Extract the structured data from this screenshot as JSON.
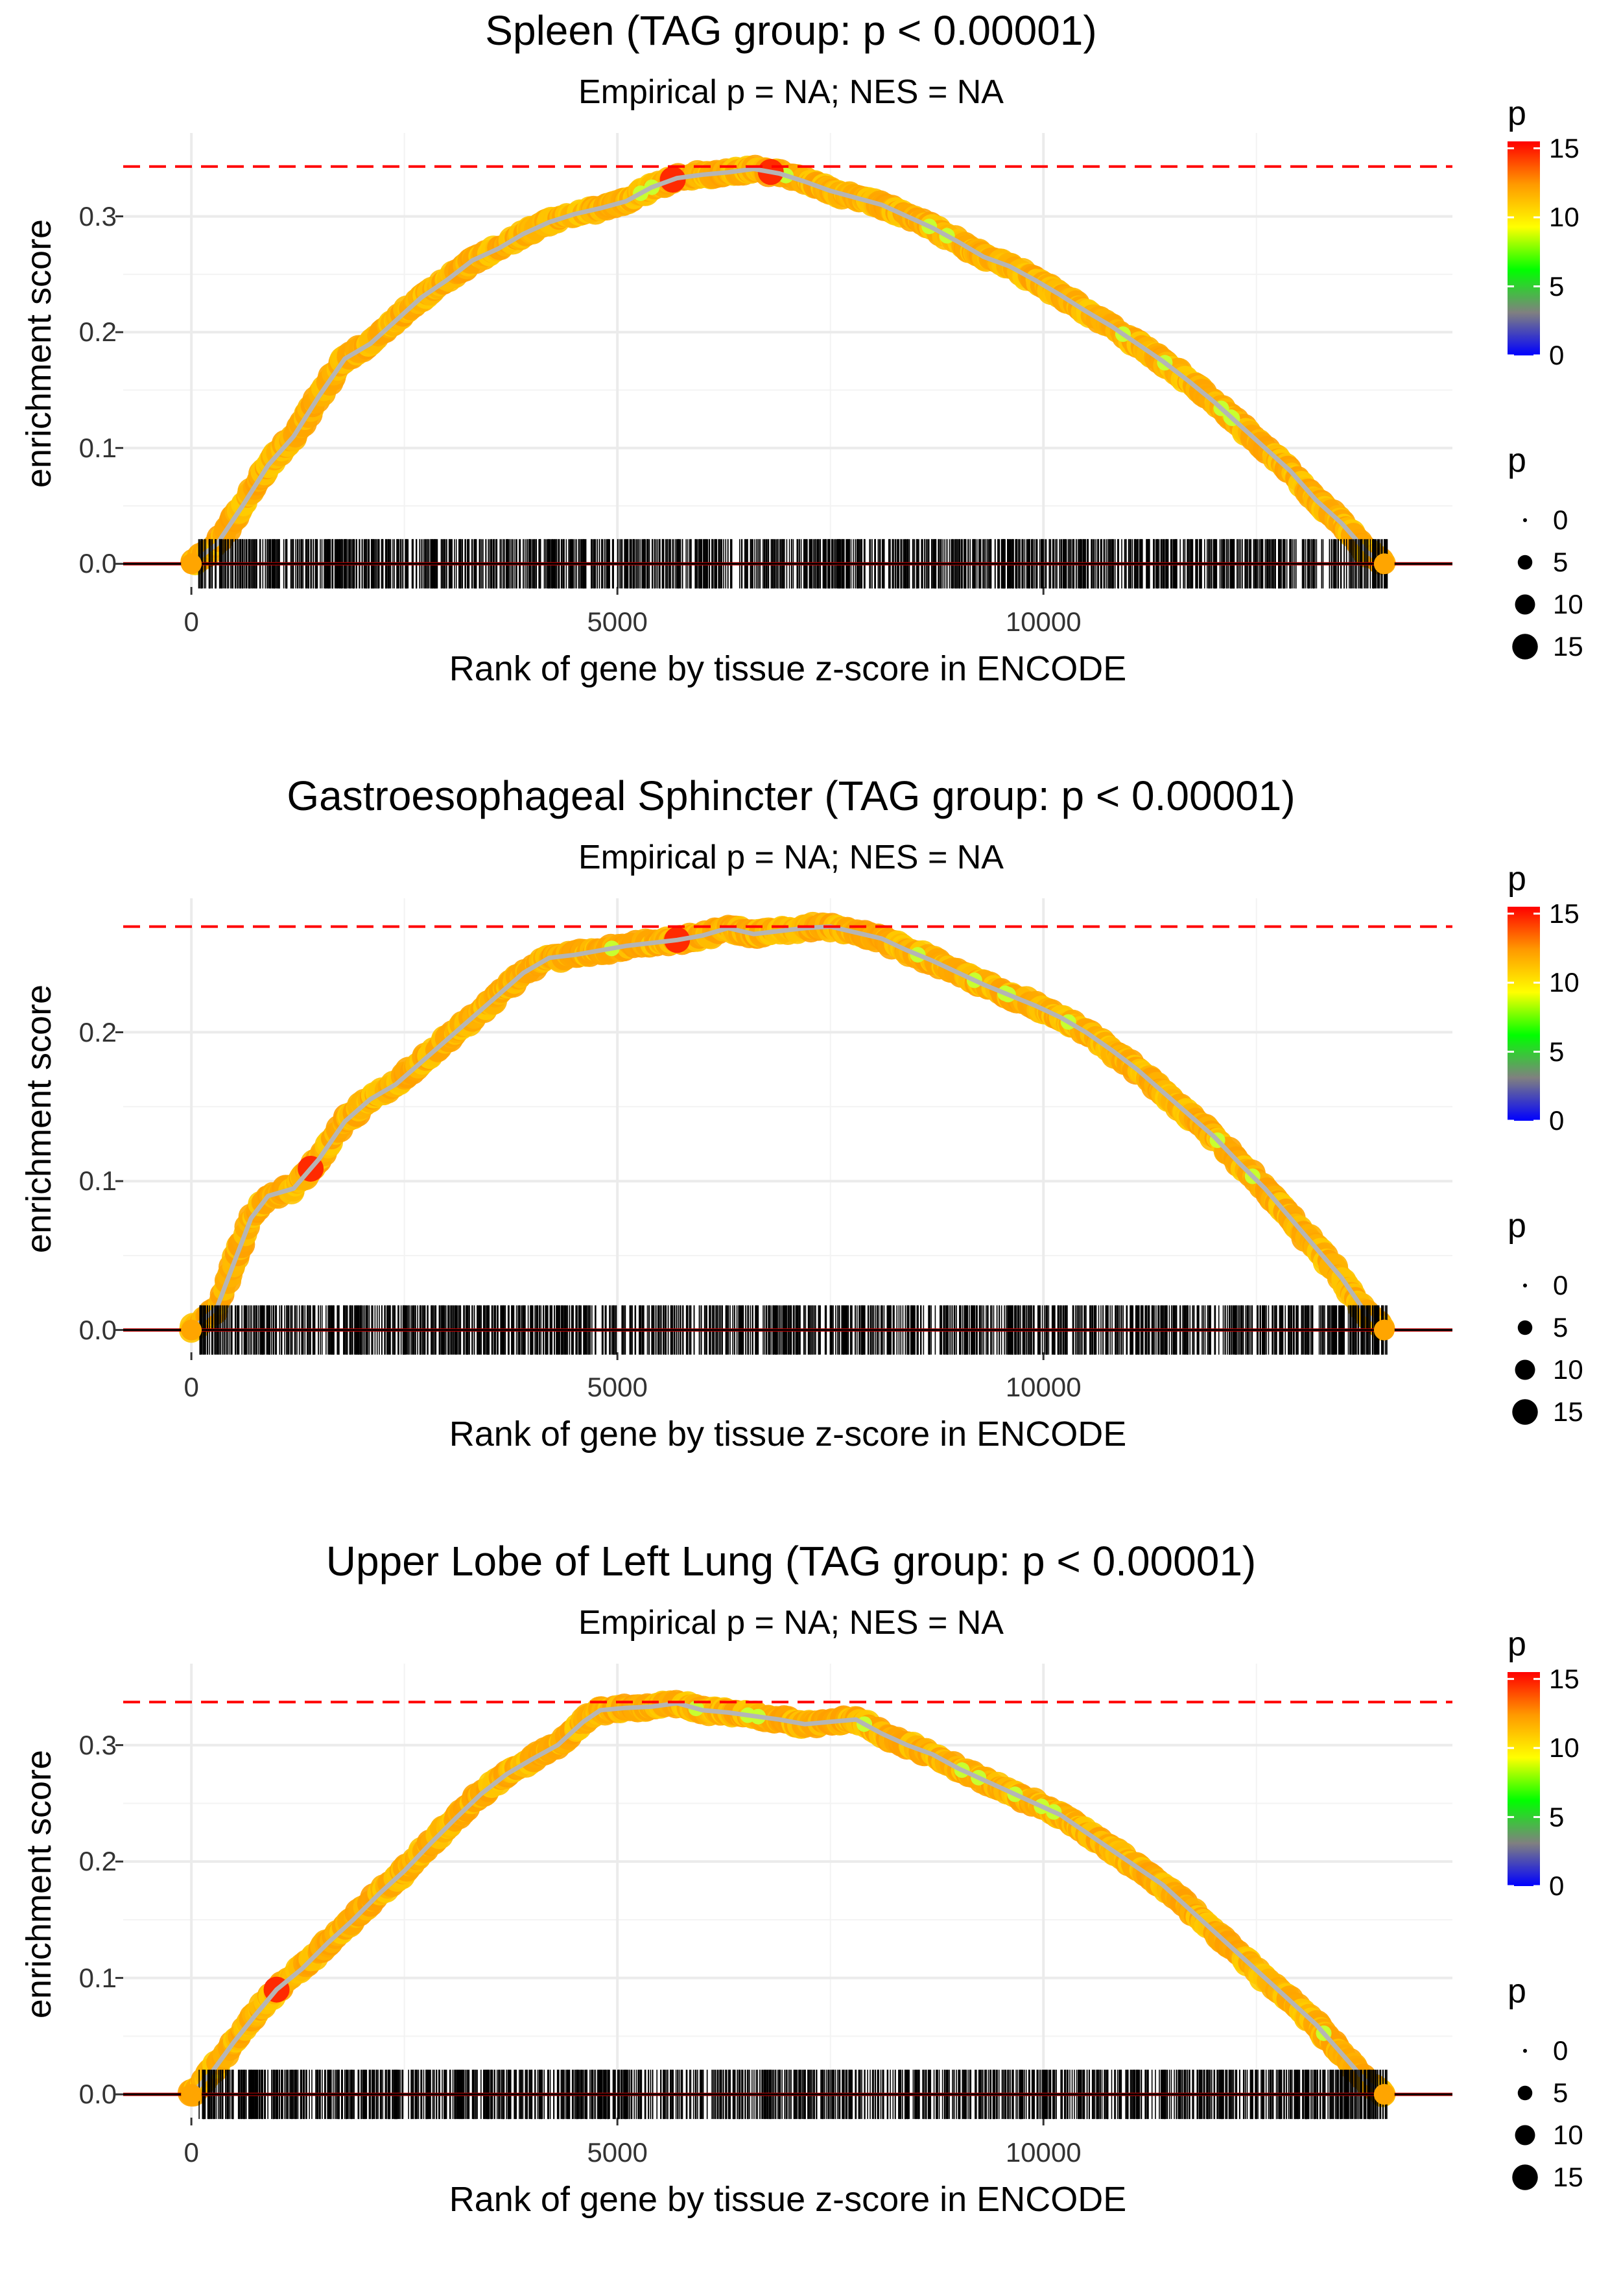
{
  "chart_data": [
    {
      "type": "line",
      "title": "Spleen (TAG group: p < 0.00001)",
      "subtitle": "Empirical p = NA; NES = NA",
      "xlabel": "Rank of gene by tissue z-score in ENCODE",
      "ylabel": "enrichment score",
      "xlim": [
        -800,
        14800
      ],
      "ylim": [
        -0.02,
        0.372
      ],
      "x_ticks": [
        0,
        5000,
        10000
      ],
      "x_tick_labels": [
        "0",
        "5000",
        "10000"
      ],
      "y_ticks": [
        0.0,
        0.1,
        0.2,
        0.3
      ],
      "y_tick_labels": [
        "0.0",
        "0.1",
        "0.2",
        "0.3"
      ],
      "max_es": 0.343,
      "max_es_line": "dashed red horizontal",
      "curve": {
        "x": [
          0,
          300,
          600,
          900,
          1200,
          1500,
          1800,
          2100,
          2400,
          2700,
          3000,
          3300,
          3600,
          3900,
          4200,
          4500,
          4800,
          5100,
          5400,
          5700,
          6000,
          6300,
          6600,
          6900,
          7200,
          7500,
          7800,
          8100,
          8400,
          8700,
          9000,
          9300,
          9600,
          9900,
          10200,
          10500,
          10800,
          11100,
          11400,
          11700,
          12000,
          12300,
          12600,
          12900,
          13200,
          13500,
          13800,
          14000
        ],
        "y": [
          0.0,
          0.017,
          0.05,
          0.085,
          0.11,
          0.145,
          0.177,
          0.19,
          0.21,
          0.23,
          0.245,
          0.262,
          0.272,
          0.285,
          0.295,
          0.302,
          0.307,
          0.313,
          0.325,
          0.333,
          0.336,
          0.338,
          0.341,
          0.337,
          0.33,
          0.322,
          0.316,
          0.31,
          0.3,
          0.29,
          0.278,
          0.265,
          0.257,
          0.245,
          0.232,
          0.218,
          0.205,
          0.19,
          0.175,
          0.158,
          0.14,
          0.12,
          0.1,
          0.08,
          0.055,
          0.035,
          0.01,
          0.0
        ]
      },
      "red_points_x": [
        5650,
        6800
      ],
      "rug_range": [
        80,
        14050
      ]
    },
    {
      "type": "line",
      "title": "Gastroesophageal Sphincter (TAG group: p < 0.00001)",
      "subtitle": "Empirical p = NA; NES = NA",
      "xlabel": "Rank of gene by tissue z-score in ENCODE",
      "ylabel": "enrichment score",
      "xlim": [
        -800,
        14800
      ],
      "ylim": [
        -0.015,
        0.29
      ],
      "x_ticks": [
        0,
        5000,
        10000
      ],
      "x_tick_labels": [
        "0",
        "5000",
        "10000"
      ],
      "y_ticks": [
        0.0,
        0.1,
        0.2
      ],
      "y_tick_labels": [
        "0.0",
        "0.1",
        "0.2"
      ],
      "max_es": 0.271,
      "max_es_line": "dashed red horizontal",
      "curve": {
        "x": [
          0,
          300,
          500,
          700,
          900,
          1200,
          1500,
          1800,
          2100,
          2400,
          2700,
          3000,
          3300,
          3600,
          3900,
          4200,
          4500,
          4800,
          5100,
          5400,
          5700,
          6000,
          6300,
          6600,
          6900,
          7200,
          7500,
          7800,
          8100,
          8400,
          8700,
          9000,
          9300,
          9600,
          9900,
          10200,
          10500,
          10800,
          11100,
          11400,
          11700,
          12000,
          12300,
          12600,
          12900,
          13200,
          13500,
          13800,
          14000
        ],
        "y": [
          0.0,
          0.015,
          0.045,
          0.075,
          0.09,
          0.095,
          0.115,
          0.14,
          0.155,
          0.165,
          0.18,
          0.195,
          0.21,
          0.225,
          0.24,
          0.25,
          0.252,
          0.255,
          0.258,
          0.26,
          0.262,
          0.265,
          0.27,
          0.266,
          0.268,
          0.27,
          0.271,
          0.267,
          0.263,
          0.255,
          0.248,
          0.24,
          0.232,
          0.225,
          0.218,
          0.21,
          0.2,
          0.188,
          0.175,
          0.16,
          0.145,
          0.13,
          0.112,
          0.095,
          0.075,
          0.055,
          0.035,
          0.01,
          0.0
        ]
      },
      "red_points_x": [
        1400,
        5700
      ],
      "rug_range": [
        80,
        14050
      ]
    },
    {
      "type": "line",
      "title": "Upper Lobe of Left Lung (TAG group: p < 0.00001)",
      "subtitle": "Empirical p = NA; NES = NA",
      "xlabel": "Rank of gene by tissue z-score in ENCODE",
      "ylabel": "enrichment score",
      "xlim": [
        -800,
        14800
      ],
      "ylim": [
        -0.02,
        0.37
      ],
      "x_ticks": [
        0,
        5000,
        10000
      ],
      "x_tick_labels": [
        "0",
        "5000",
        "10000"
      ],
      "y_ticks": [
        0.0,
        0.1,
        0.2,
        0.3
      ],
      "y_tick_labels": [
        "0.0",
        "0.1",
        "0.2",
        "0.3"
      ],
      "max_es": 0.337,
      "max_es_line": "dashed red horizontal",
      "curve": {
        "x": [
          0,
          250,
          500,
          750,
          1000,
          1300,
          1600,
          1900,
          2200,
          2500,
          2800,
          3100,
          3400,
          3700,
          4000,
          4300,
          4600,
          4800,
          5100,
          5400,
          5700,
          6000,
          6300,
          6600,
          6900,
          7200,
          7500,
          7800,
          8100,
          8400,
          8700,
          9000,
          9300,
          9600,
          9900,
          10200,
          10500,
          10800,
          11100,
          11400,
          11700,
          12000,
          12300,
          12600,
          12900,
          13200,
          13500,
          13800,
          14000
        ],
        "y": [
          0.0,
          0.02,
          0.045,
          0.068,
          0.09,
          0.108,
          0.13,
          0.15,
          0.172,
          0.192,
          0.215,
          0.237,
          0.258,
          0.275,
          0.288,
          0.3,
          0.32,
          0.33,
          0.332,
          0.333,
          0.336,
          0.33,
          0.328,
          0.325,
          0.322,
          0.318,
          0.32,
          0.322,
          0.31,
          0.3,
          0.292,
          0.28,
          0.27,
          0.26,
          0.25,
          0.24,
          0.225,
          0.21,
          0.195,
          0.18,
          0.16,
          0.14,
          0.12,
          0.1,
          0.08,
          0.06,
          0.035,
          0.01,
          0.0
        ]
      },
      "red_points_x": [
        1000
      ],
      "rug_range": [
        80,
        14050
      ]
    }
  ],
  "legend": {
    "color_title": "p",
    "color_ticks": [
      "15",
      "10",
      "5",
      "0"
    ],
    "color_tick_values": [
      15,
      10,
      5,
      0
    ],
    "color_range": [
      0,
      15.5
    ],
    "color_stops": [
      "#0000ff",
      "#808080",
      "#00ff00",
      "#ffff00",
      "#ff9900",
      "#ff0000"
    ],
    "size_title": "p",
    "size_labels": [
      "0",
      "5",
      "10",
      "15"
    ],
    "size_values": [
      0,
      5,
      10,
      15
    ]
  }
}
